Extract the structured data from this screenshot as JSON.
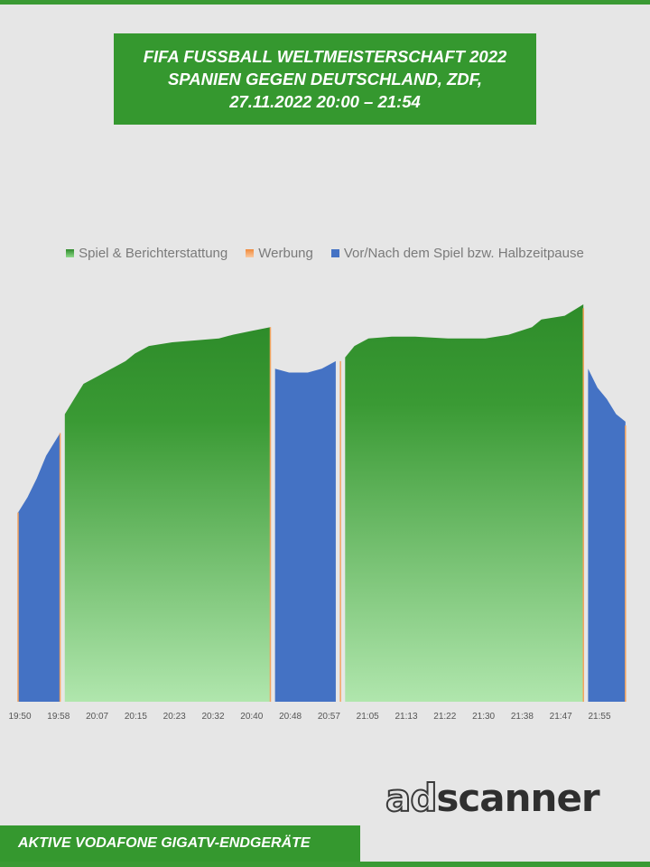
{
  "header": {
    "title_lines": [
      "FIFA FUSSBALL WELTMEISTERSCHAFT 2022",
      "SPANIEN GEGEN DEUTSCHLAND, ZDF,",
      "27.11.2022  20:00 – 21:54"
    ]
  },
  "legend": [
    {
      "label": "Spiel & Berichterstattung",
      "color": "#3a9a34"
    },
    {
      "label": "Werbung",
      "color": "#f4a460"
    },
    {
      "label": "Vor/Nach dem Spiel bzw. Halbzeitpause",
      "color": "#4472c4"
    }
  ],
  "chart_data": {
    "type": "area",
    "x_tick_labels": [
      "19:50",
      "19:58",
      "20:07",
      "20:15",
      "20:23",
      "20:32",
      "20:40",
      "20:48",
      "20:57",
      "21:05",
      "21:13",
      "21:22",
      "21:30",
      "21:38",
      "21:47",
      "21:55"
    ],
    "x_range": [
      "19:50",
      "22:01"
    ],
    "y_axis_visible": false,
    "y_units": "relative (no y-axis labels shown)",
    "ylim": [
      0,
      100
    ],
    "series": [
      {
        "name": "Vor/Nach dem Spiel bzw. Halbzeitpause",
        "color": "#4472c4",
        "points": [
          [
            "19:50",
            50
          ],
          [
            "19:52",
            54
          ],
          [
            "19:54",
            59
          ],
          [
            "19:56",
            65
          ],
          [
            "19:58",
            69
          ],
          [
            "19:59",
            71
          ]
        ]
      },
      {
        "name": "Spiel & Berichterstattung",
        "color": "#3a9a34",
        "points": [
          [
            "20:00",
            76
          ],
          [
            "20:02",
            80
          ],
          [
            "20:04",
            84
          ],
          [
            "20:07",
            86
          ],
          [
            "20:10",
            88
          ],
          [
            "20:13",
            90
          ],
          [
            "20:15",
            92
          ],
          [
            "20:18",
            94
          ],
          [
            "20:23",
            95
          ],
          [
            "20:28",
            95.5
          ],
          [
            "20:33",
            96
          ],
          [
            "20:36",
            97
          ],
          [
            "20:40",
            98
          ],
          [
            "20:44",
            99
          ]
        ]
      },
      {
        "name": "Vor/Nach dem Spiel bzw. Halbzeitpause",
        "color": "#4472c4",
        "points": [
          [
            "20:45",
            88
          ],
          [
            "20:48",
            87
          ],
          [
            "20:52",
            87
          ],
          [
            "20:55",
            88
          ],
          [
            "20:58",
            90
          ]
        ]
      },
      {
        "name": "Spiel & Berichterstattung",
        "color": "#3a9a34",
        "points": [
          [
            "21:00",
            91
          ],
          [
            "21:02",
            94
          ],
          [
            "21:05",
            96
          ],
          [
            "21:10",
            96.5
          ],
          [
            "21:15",
            96.5
          ],
          [
            "21:22",
            96
          ],
          [
            "21:30",
            96
          ],
          [
            "21:35",
            97
          ],
          [
            "21:40",
            99
          ],
          [
            "21:42",
            101
          ],
          [
            "21:47",
            102
          ],
          [
            "21:51",
            105
          ]
        ]
      },
      {
        "name": "Vor/Nach dem Spiel bzw. Halbzeitpause",
        "color": "#4472c4",
        "points": [
          [
            "21:52",
            88
          ],
          [
            "21:54",
            83
          ],
          [
            "21:56",
            80
          ],
          [
            "21:58",
            76
          ],
          [
            "22:00",
            74
          ]
        ]
      },
      {
        "name": "Werbung",
        "color": "#f4a460",
        "points": [
          [
            "19:50",
            50
          ],
          [
            "19:59",
            71
          ],
          [
            "20:44",
            99
          ],
          [
            "20:59",
            90
          ],
          [
            "21:51",
            104
          ],
          [
            "22:00",
            73
          ]
        ]
      }
    ]
  },
  "logo": {
    "part1": "ad",
    "part2": "scanner"
  },
  "footer": {
    "label": "AKTIVE VODAFONE GIGATV-ENDGERÄTE"
  }
}
